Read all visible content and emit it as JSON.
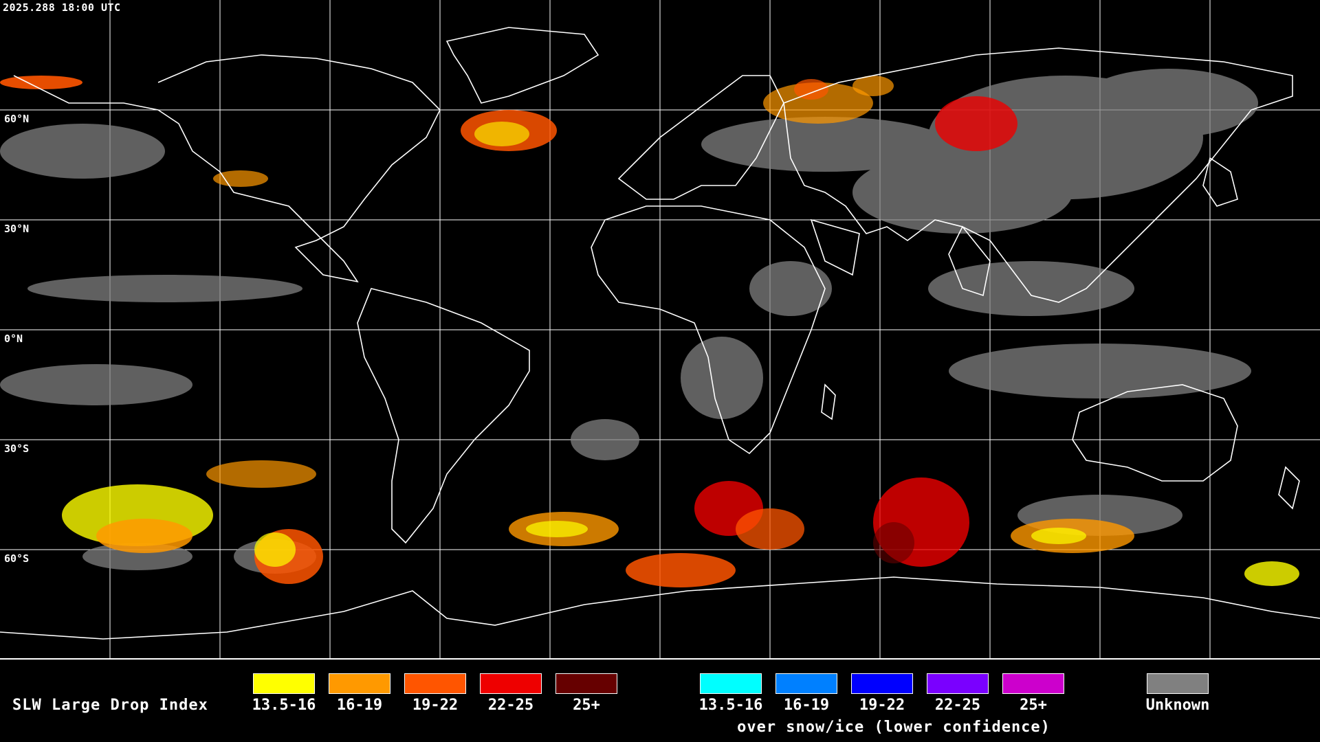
{
  "map": {
    "timestamp": "2025.288 18:00 UTC",
    "latitude_labels": [
      "60°N",
      "30°N",
      "0°N",
      "30°S",
      "60°S"
    ],
    "coastline_color": "#ffffff",
    "grid_color": "#ffffff"
  },
  "legend": {
    "title": "SLW Large Drop Index",
    "standard_classes": [
      {
        "label": "13.5-16",
        "color": "#ffff00"
      },
      {
        "label": "16-19",
        "color": "#ff9900"
      },
      {
        "label": "19-22",
        "color": "#ff5500"
      },
      {
        "label": "22-25",
        "color": "#ee0000"
      },
      {
        "label": "25+",
        "color": "#660000"
      }
    ],
    "snow_ice_classes": [
      {
        "label": "13.5-16",
        "color": "#00ffff"
      },
      {
        "label": "16-19",
        "color": "#0080ff"
      },
      {
        "label": "19-22",
        "color": "#0000ff"
      },
      {
        "label": "22-25",
        "color": "#7a00ff"
      },
      {
        "label": "25+",
        "color": "#cc00cc"
      }
    ],
    "snow_ice_note": "over snow/ice (lower confidence)",
    "unknown": {
      "label": "Unknown",
      "color": "#808080"
    }
  }
}
